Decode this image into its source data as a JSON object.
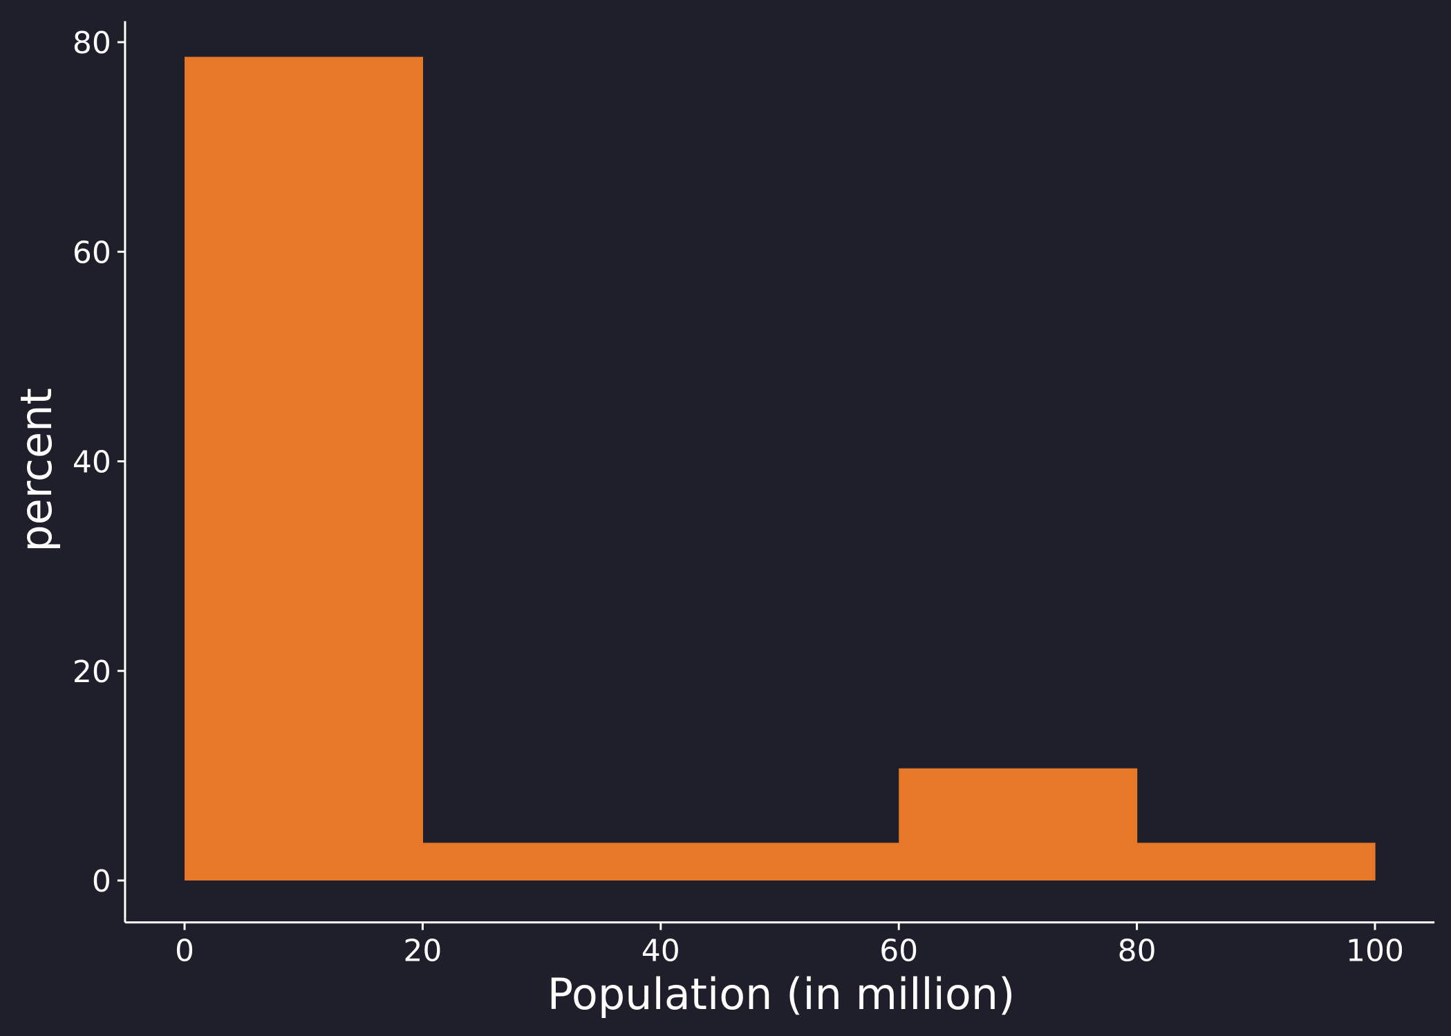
{
  "chart_data": {
    "type": "bar",
    "subtype": "histogram",
    "title": "",
    "xlabel": "Population (in million)",
    "ylabel": "percent",
    "bins": [
      {
        "start": 0,
        "end": 20,
        "value": 78.6
      },
      {
        "start": 20,
        "end": 40,
        "value": 3.6
      },
      {
        "start": 40,
        "end": 60,
        "value": 3.6
      },
      {
        "start": 60,
        "end": 80,
        "value": 10.7
      },
      {
        "start": 80,
        "end": 100,
        "value": 3.6
      }
    ],
    "xlim": [
      -5,
      105
    ],
    "ylim": [
      -4,
      82
    ],
    "xticks": [
      0,
      20,
      40,
      60,
      80,
      100
    ],
    "yticks": [
      0,
      20,
      40,
      60,
      80
    ],
    "grid": false,
    "legend": "none",
    "colors": {
      "background": "#1e1f2a",
      "bar": "#e67828",
      "axis": "#ffffff",
      "text": "#ffffff"
    }
  }
}
